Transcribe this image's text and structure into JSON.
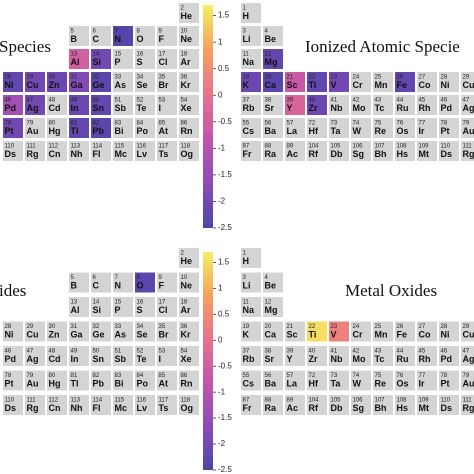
{
  "chart_data": [
    {
      "type": "heatmap",
      "title": "Species",
      "rows": [
        {
          "symbols": [
            null,
            null,
            null,
            null,
            null,
            null,
            null,
            null,
            "He"
          ],
          "numbers": [
            null,
            null,
            null,
            null,
            null,
            null,
            null,
            null,
            2
          ],
          "values": [
            null,
            null,
            null,
            null,
            null,
            null,
            null,
            null,
            null
          ]
        },
        {
          "symbols": [
            null,
            null,
            null,
            "B",
            "C",
            "N",
            "O",
            "F",
            "Ne"
          ],
          "numbers": [
            null,
            null,
            null,
            5,
            6,
            7,
            8,
            9,
            10
          ],
          "values": [
            null,
            null,
            null,
            null,
            null,
            -2.4,
            null,
            null,
            null
          ]
        },
        {
          "symbols": [
            null,
            null,
            null,
            "Al",
            "Si",
            "P",
            "S",
            "Cl",
            "Ar"
          ],
          "numbers": [
            null,
            null,
            null,
            13,
            14,
            15,
            16,
            17,
            18
          ],
          "values": [
            null,
            null,
            null,
            -0.5,
            -2.0,
            null,
            null,
            null,
            null
          ]
        },
        {
          "symbols": [
            "Ni",
            "Cu",
            "Zn",
            "Ga",
            "Ge",
            "As",
            "Se",
            "Br",
            "Kr"
          ],
          "numbers": [
            28,
            29,
            30,
            31,
            32,
            33,
            34,
            35,
            36
          ],
          "values": [
            -2.2,
            -2.0,
            -2.1,
            -1.8,
            -2.3,
            null,
            null,
            null,
            null
          ]
        },
        {
          "symbols": [
            "Pd",
            "Ag",
            "Cd",
            "In",
            "Sn",
            "Sb",
            "Te",
            "I",
            "Xe"
          ],
          "numbers": [
            46,
            47,
            48,
            49,
            50,
            51,
            52,
            53,
            54
          ],
          "values": [
            -1.3,
            -2.0,
            null,
            -2.1,
            -2.2,
            null,
            null,
            null,
            null
          ]
        },
        {
          "symbols": [
            "Pt",
            "Au",
            "Hg",
            "Tl",
            "Pb",
            "Bi",
            "Po",
            "At",
            "Rn"
          ],
          "numbers": [
            78,
            79,
            80,
            81,
            82,
            83,
            84,
            85,
            86
          ],
          "values": [
            -2.0,
            null,
            null,
            -2.2,
            -2.3,
            null,
            null,
            null,
            null
          ]
        },
        {
          "symbols": [
            "Ds",
            "Rg",
            "Cn",
            "Nh",
            "Fl",
            "Mc",
            "Lv",
            "Ts",
            "Og"
          ],
          "numbers": [
            110,
            111,
            112,
            113,
            114,
            115,
            116,
            117,
            118
          ],
          "values": [
            null,
            null,
            null,
            null,
            null,
            null,
            null,
            null,
            null
          ]
        }
      ]
    },
    {
      "type": "heatmap",
      "title": "Ionized Atomic Specie",
      "rows": [
        {
          "symbols": [
            "H",
            null,
            null,
            null,
            null,
            null,
            null,
            null,
            null,
            null,
            null
          ],
          "numbers": [
            1,
            null,
            null,
            null,
            null,
            null,
            null,
            null,
            null,
            null,
            null
          ],
          "values": [
            null,
            null,
            null,
            null,
            null,
            null,
            null,
            null,
            null,
            null,
            null
          ]
        },
        {
          "symbols": [
            "Li",
            "Be",
            null,
            null,
            null,
            null,
            null,
            null,
            null,
            null,
            null
          ],
          "numbers": [
            3,
            4,
            null,
            null,
            null,
            null,
            null,
            null,
            null,
            null,
            null
          ],
          "values": [
            null,
            null,
            null,
            null,
            null,
            null,
            null,
            null,
            null,
            null,
            null
          ]
        },
        {
          "symbols": [
            "Na",
            "Mg",
            null,
            null,
            null,
            null,
            null,
            null,
            null,
            null,
            null
          ],
          "numbers": [
            11,
            12,
            null,
            null,
            null,
            null,
            null,
            null,
            null,
            null,
            null
          ],
          "values": [
            null,
            -2.2,
            null,
            null,
            null,
            null,
            null,
            null,
            null,
            null,
            null
          ]
        },
        {
          "symbols": [
            "K",
            "Ca",
            "Sc",
            "Ti",
            "V",
            "Cr",
            "Mn",
            "Fe",
            "Co",
            "Ni",
            "Cu"
          ],
          "numbers": [
            19,
            20,
            21,
            22,
            23,
            24,
            25,
            26,
            27,
            28,
            29
          ],
          "values": [
            -2.1,
            -2.3,
            -0.7,
            -2.2,
            -2.0,
            null,
            null,
            -2.2,
            null,
            null,
            null
          ]
        },
        {
          "symbols": [
            "Rb",
            "Sr",
            "Y",
            "Zr",
            "Nb",
            "Mo",
            "Tc",
            "Ru",
            "Rh",
            "Pd",
            "Ag"
          ],
          "numbers": [
            37,
            38,
            39,
            40,
            41,
            42,
            43,
            44,
            45,
            46,
            47
          ],
          "values": [
            null,
            null,
            -0.4,
            -2.1,
            null,
            null,
            null,
            null,
            null,
            null,
            null
          ]
        },
        {
          "symbols": [
            "Cs",
            "Ba",
            "La",
            "Hf",
            "Ta",
            "W",
            "Re",
            "Os",
            "Ir",
            "Pt",
            "Au"
          ],
          "numbers": [
            55,
            56,
            57,
            72,
            73,
            74,
            75,
            76,
            77,
            78,
            79
          ],
          "values": [
            null,
            null,
            null,
            null,
            null,
            null,
            null,
            null,
            null,
            null,
            null
          ]
        },
        {
          "symbols": [
            "Fr",
            "Ra",
            "Ac",
            "Rf",
            "Db",
            "Sg",
            "Bh",
            "Hs",
            "Mt",
            "Ds",
            "Rg"
          ],
          "numbers": [
            87,
            88,
            89,
            104,
            105,
            106,
            107,
            108,
            109,
            110,
            111
          ],
          "values": [
            null,
            null,
            null,
            null,
            null,
            null,
            null,
            null,
            null,
            null,
            null
          ]
        }
      ]
    },
    {
      "type": "colorbar",
      "ylim": [
        -2.5,
        1.7
      ],
      "yticks": [
        1.5,
        1,
        0.5,
        0,
        -0.5,
        -1,
        -1.5,
        -2,
        -2.5
      ],
      "colormap": [
        "#4b44a8",
        "#8c4cb8",
        "#c255ac",
        "#e9728c",
        "#f5a05e",
        "#f5f062"
      ]
    },
    {
      "type": "heatmap",
      "title": "ides",
      "rows": [
        {
          "symbols": [
            null,
            null,
            null,
            null,
            null,
            null,
            null,
            null,
            "He"
          ],
          "numbers": [
            null,
            null,
            null,
            null,
            null,
            null,
            null,
            null,
            2
          ],
          "values": [
            null,
            null,
            null,
            null,
            null,
            null,
            null,
            null,
            null
          ]
        },
        {
          "symbols": [
            null,
            null,
            null,
            "B",
            "C",
            "N",
            "O",
            "F",
            "Ne"
          ],
          "numbers": [
            null,
            null,
            null,
            5,
            6,
            7,
            8,
            9,
            10
          ],
          "values": [
            null,
            null,
            null,
            null,
            null,
            null,
            -2.3,
            null,
            null
          ]
        },
        {
          "symbols": [
            null,
            null,
            null,
            "Al",
            "Si",
            "P",
            "S",
            "Cl",
            "Ar"
          ],
          "numbers": [
            null,
            null,
            null,
            13,
            14,
            15,
            16,
            17,
            18
          ],
          "values": [
            null,
            null,
            null,
            null,
            null,
            null,
            null,
            null,
            null
          ]
        },
        {
          "symbols": [
            "Ni",
            "Cu",
            "Zn",
            "Ga",
            "Ge",
            "As",
            "Se",
            "Br",
            "Kr"
          ],
          "numbers": [
            28,
            29,
            30,
            31,
            32,
            33,
            34,
            35,
            36
          ],
          "values": [
            null,
            null,
            null,
            null,
            null,
            null,
            null,
            null,
            null
          ]
        },
        {
          "symbols": [
            "Pd",
            "Ag",
            "Cd",
            "In",
            "Sn",
            "Sb",
            "Te",
            "I",
            "Xe"
          ],
          "numbers": [
            46,
            47,
            48,
            49,
            50,
            51,
            52,
            53,
            54
          ],
          "values": [
            null,
            null,
            null,
            null,
            null,
            null,
            null,
            null,
            null
          ]
        },
        {
          "symbols": [
            "Pt",
            "Au",
            "Hg",
            "Tl",
            "Pb",
            "Bi",
            "Po",
            "At",
            "Rn"
          ],
          "numbers": [
            78,
            79,
            80,
            81,
            82,
            83,
            84,
            85,
            86
          ],
          "values": [
            null,
            null,
            null,
            null,
            null,
            null,
            null,
            null,
            null
          ]
        },
        {
          "symbols": [
            "Ds",
            "Rg",
            "Cn",
            "Nh",
            "Fl",
            "Mc",
            "Lv",
            "Ts",
            "Og"
          ],
          "numbers": [
            110,
            111,
            112,
            113,
            114,
            115,
            116,
            117,
            118
          ],
          "values": [
            null,
            null,
            null,
            null,
            null,
            null,
            null,
            null,
            null
          ]
        }
      ]
    },
    {
      "type": "heatmap",
      "title": "Metal Oxides",
      "rows": [
        {
          "symbols": [
            "H",
            null,
            null,
            null,
            null,
            null,
            null,
            null,
            null,
            null,
            null
          ],
          "numbers": [
            1,
            null,
            null,
            null,
            null,
            null,
            null,
            null,
            null,
            null,
            null
          ],
          "values": [
            null,
            null,
            null,
            null,
            null,
            null,
            null,
            null,
            null,
            null,
            null
          ]
        },
        {
          "symbols": [
            "Li",
            "Be",
            null,
            null,
            null,
            null,
            null,
            null,
            null,
            null,
            null
          ],
          "numbers": [
            3,
            4,
            null,
            null,
            null,
            null,
            null,
            null,
            null,
            null,
            null
          ],
          "values": [
            null,
            null,
            null,
            null,
            null,
            null,
            null,
            null,
            null,
            null,
            null
          ]
        },
        {
          "symbols": [
            "Na",
            "Mg",
            null,
            null,
            null,
            null,
            null,
            null,
            null,
            null,
            null
          ],
          "numbers": [
            11,
            12,
            null,
            null,
            null,
            null,
            null,
            null,
            null,
            null,
            null
          ],
          "values": [
            null,
            null,
            null,
            null,
            null,
            null,
            null,
            null,
            null,
            null,
            null
          ]
        },
        {
          "symbols": [
            "K",
            "Ca",
            "Sc",
            "Ti",
            "V",
            "Cr",
            "Mn",
            "Fe",
            "Co",
            "Ni",
            "Cu"
          ],
          "numbers": [
            19,
            20,
            21,
            22,
            23,
            24,
            25,
            26,
            27,
            28,
            29
          ],
          "values": [
            null,
            null,
            null,
            1.5,
            0.3,
            null,
            null,
            null,
            null,
            null,
            null
          ]
        },
        {
          "symbols": [
            "Rb",
            "Sr",
            "Y",
            "Zr",
            "Nb",
            "Mo",
            "Tc",
            "Ru",
            "Rh",
            "Pd",
            "Ag"
          ],
          "numbers": [
            37,
            38,
            39,
            40,
            41,
            42,
            43,
            44,
            45,
            46,
            47
          ],
          "values": [
            null,
            null,
            null,
            null,
            null,
            null,
            null,
            null,
            null,
            null,
            null
          ]
        },
        {
          "symbols": [
            "Cs",
            "Ba",
            "La",
            "Hf",
            "Ta",
            "W",
            "Re",
            "Os",
            "Ir",
            "Pt",
            "Au"
          ],
          "numbers": [
            55,
            56,
            57,
            72,
            73,
            74,
            75,
            76,
            77,
            78,
            79
          ],
          "values": [
            null,
            null,
            null,
            null,
            null,
            null,
            null,
            null,
            null,
            null,
            null
          ]
        },
        {
          "symbols": [
            "Fr",
            "Ra",
            "Ac",
            "Rf",
            "Db",
            "Sg",
            "Bh",
            "Hs",
            "Mt",
            "Ds",
            "Rg"
          ],
          "numbers": [
            87,
            88,
            89,
            104,
            105,
            106,
            107,
            108,
            109,
            110,
            111
          ],
          "values": [
            null,
            null,
            null,
            null,
            null,
            null,
            null,
            null,
            null,
            null,
            null
          ]
        }
      ]
    },
    {
      "type": "colorbar",
      "ylim": [
        -2.5,
        1.7
      ],
      "yticks": [
        1.5,
        1,
        0.5,
        0,
        -0.5,
        -1,
        -1.5,
        -2,
        -2.5
      ],
      "colormap": [
        "#4b44a8",
        "#8c4cb8",
        "#c255ac",
        "#e9728c",
        "#f5a05e",
        "#f5f062"
      ]
    }
  ]
}
